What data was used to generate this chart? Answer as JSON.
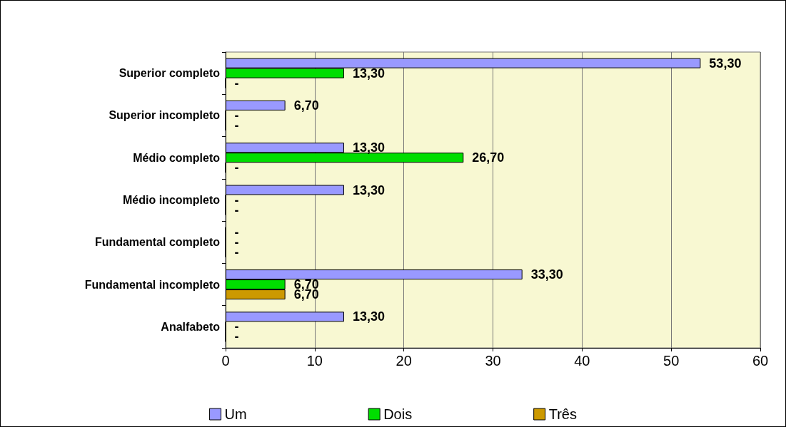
{
  "chart_data": {
    "type": "bar",
    "orientation": "horizontal",
    "categories": [
      "Superior completo",
      "Superior incompleto",
      "Médio completo",
      "Médio incompleto",
      "Fundamental completo",
      "Fundamental incompleto",
      "Analfabeto"
    ],
    "series": [
      {
        "name": "Um",
        "color": "#9999ff",
        "values": [
          53.3,
          6.7,
          13.3,
          13.3,
          0,
          33.3,
          13.3
        ],
        "value_labels": [
          "53,30",
          "6,70",
          "13,30",
          "13,30",
          "-",
          "33,30",
          "13,30"
        ]
      },
      {
        "name": "Dois",
        "color": "#00dd00",
        "values": [
          13.3,
          0,
          26.7,
          0,
          0,
          6.7,
          0
        ],
        "value_labels": [
          "13,30",
          "-",
          "26,70",
          "-",
          "-",
          "6,70",
          "-"
        ]
      },
      {
        "name": "Três",
        "color": "#cc9900",
        "values": [
          0,
          0,
          0,
          0,
          0,
          6.7,
          0
        ],
        "value_labels": [
          "-",
          "-",
          "-",
          "-",
          "-",
          "6,70",
          "-"
        ]
      }
    ],
    "xlim": [
      0,
      60
    ],
    "xticks": [
      0,
      10,
      20,
      30,
      40,
      50,
      60
    ],
    "grid": "x",
    "legend": "bottom"
  }
}
